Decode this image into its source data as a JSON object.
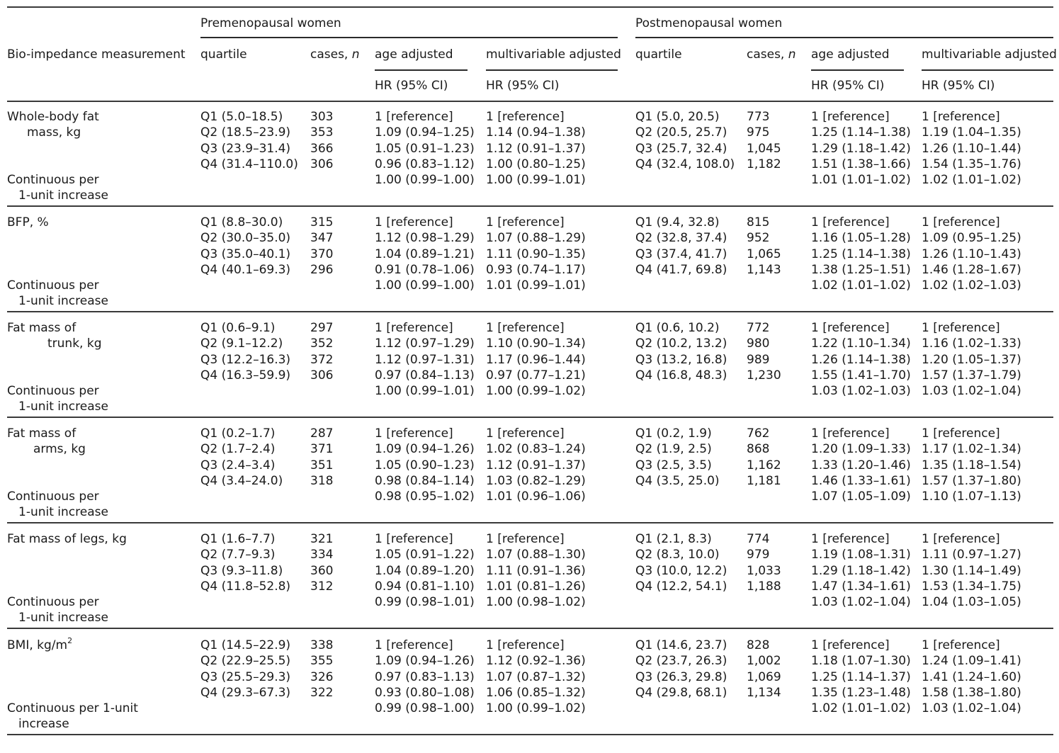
{
  "table": {
    "group_headers": {
      "pre": "Premenopausal women",
      "post": "Postmenopausal women"
    },
    "columns": {
      "measurement": "Bio-impedance measurement",
      "quartile": "quartile",
      "cases": "cases, ",
      "cases_n": "n",
      "age_adjusted": "age adjusted",
      "multivariable_adjusted": "multivariable adjusted",
      "hr_ci": "HR (95% CI)"
    },
    "sections": [
      {
        "label": [
          "Whole-body fat",
          "mass, kg"
        ],
        "continuous_label": [
          "Continuous per",
          "1-unit increase"
        ],
        "rows": [
          {
            "pre_q": "Q1 (5.0–18.5)",
            "pre_n": "303",
            "pre_age": "1 [reference]",
            "pre_mv": "1 [reference]",
            "post_q": "Q1 (5.0, 20.5)",
            "post_n": "773",
            "post_age": "1 [reference]",
            "post_mv": "1 [reference]"
          },
          {
            "pre_q": "Q2 (18.5–23.9)",
            "pre_n": "353",
            "pre_age": "1.09 (0.94–1.25)",
            "pre_mv": "1.14 (0.94–1.38)",
            "post_q": "Q2 (20.5, 25.7)",
            "post_n": "975",
            "post_age": "1.25 (1.14–1.38)",
            "post_mv": "1.19 (1.04–1.35)"
          },
          {
            "pre_q": "Q3 (23.9–31.4)",
            "pre_n": "366",
            "pre_age": "1.05 (0.91–1.23)",
            "pre_mv": "1.12 (0.91–1.37)",
            "post_q": "Q3 (25.7, 32.4)",
            "post_n": "1,045",
            "post_age": "1.29 (1.18–1.42)",
            "post_mv": "1.26 (1.10–1.44)"
          },
          {
            "pre_q": "Q4 (31.4–110.0)",
            "pre_n": "306",
            "pre_age": "0.96 (0.83–1.12)",
            "pre_mv": "1.00 (0.80–1.25)",
            "post_q": "Q4 (32.4, 108.0)",
            "post_n": "1,182",
            "post_age": "1.51 (1.38–1.66)",
            "post_mv": "1.54 (1.35–1.76)"
          }
        ],
        "continuous": {
          "pre_age": "1.00 (0.99–1.00)",
          "pre_mv": "1.00 (0.99–1.01)",
          "post_age": "1.01 (1.01–1.02)",
          "post_mv": "1.02 (1.01–1.02)"
        }
      },
      {
        "label": [
          "BFP, %"
        ],
        "continuous_label": [
          "Continuous per",
          "1-unit increase"
        ],
        "rows": [
          {
            "pre_q": "Q1 (8.8–30.0)",
            "pre_n": "315",
            "pre_age": "1 [reference]",
            "pre_mv": "1 [reference]",
            "post_q": "Q1 (9.4, 32.8)",
            "post_n": "815",
            "post_age": "1 [reference]",
            "post_mv": "1 [reference]"
          },
          {
            "pre_q": "Q2 (30.0–35.0)",
            "pre_n": "347",
            "pre_age": "1.12 (0.98–1.29)",
            "pre_mv": "1.07 (0.88–1.29)",
            "post_q": "Q2 (32.8, 37.4)",
            "post_n": "952",
            "post_age": "1.16 (1.05–1.28)",
            "post_mv": "1.09 (0.95–1.25)"
          },
          {
            "pre_q": "Q3 (35.0–40.1)",
            "pre_n": "370",
            "pre_age": "1.04 (0.89–1.21)",
            "pre_mv": "1.11 (0.90–1.35)",
            "post_q": "Q3 (37.4, 41.7)",
            "post_n": "1,065",
            "post_age": "1.25 (1.14–1.38)",
            "post_mv": "1.26 (1.10–1.43)"
          },
          {
            "pre_q": "Q4 (40.1–69.3)",
            "pre_n": "296",
            "pre_age": "0.91 (0.78–1.06)",
            "pre_mv": "0.93 (0.74–1.17)",
            "post_q": "Q4 (41.7, 69.8)",
            "post_n": "1,143",
            "post_age": "1.38 (1.25–1.51)",
            "post_mv": "1.46 (1.28–1.67)"
          }
        ],
        "continuous": {
          "pre_age": "1.00 (0.99–1.00)",
          "pre_mv": "1.01 (0.99–1.01)",
          "post_age": "1.02 (1.01–1.02)",
          "post_mv": "1.02 (1.02–1.03)"
        }
      },
      {
        "label": [
          "Fat mass of",
          "trunk, kg"
        ],
        "continuous_label": [
          "Continuous per",
          "1-unit increase"
        ],
        "rows": [
          {
            "pre_q": "Q1 (0.6–9.1)",
            "pre_n": "297",
            "pre_age": "1 [reference]",
            "pre_mv": "1 [reference]",
            "post_q": "Q1 (0.6, 10.2)",
            "post_n": "772",
            "post_age": "1 [reference]",
            "post_mv": "1 [reference]"
          },
          {
            "pre_q": "Q2 (9.1–12.2)",
            "pre_n": "352",
            "pre_age": "1.12 (0.97–1.29)",
            "pre_mv": "1.10 (0.90–1.34)",
            "post_q": "Q2 (10.2, 13.2)",
            "post_n": "980",
            "post_age": "1.22 (1.10–1.34)",
            "post_mv": "1.16 (1.02–1.33)"
          },
          {
            "pre_q": "Q3 (12.2–16.3)",
            "pre_n": "372",
            "pre_age": "1.12 (0.97–1.31)",
            "pre_mv": "1.17 (0.96–1.44)",
            "post_q": "Q3 (13.2, 16.8)",
            "post_n": "989",
            "post_age": "1.26 (1.14–1.38)",
            "post_mv": "1.20 (1.05–1.37)"
          },
          {
            "pre_q": "Q4 (16.3–59.9)",
            "pre_n": "306",
            "pre_age": "0.97 (0.84–1.13)",
            "pre_mv": "0.97 (0.77–1.21)",
            "post_q": "Q4 (16.8, 48.3)",
            "post_n": "1,230",
            "post_age": "1.55 (1.41–1.70)",
            "post_mv": "1.57 (1.37–1.79)"
          }
        ],
        "continuous": {
          "pre_age": "1.00 (0.99–1.01)",
          "pre_mv": "1.00 (0.99–1.02)",
          "post_age": "1.03 (1.02–1.03)",
          "post_mv": "1.03 (1.02–1.04)"
        }
      },
      {
        "label": [
          "Fat mass of",
          "arms, kg"
        ],
        "continuous_label": [
          "Continuous per",
          "1-unit increase"
        ],
        "rows": [
          {
            "pre_q": "Q1 (0.2–1.7)",
            "pre_n": "287",
            "pre_age": "1 [reference]",
            "pre_mv": "1 [reference]",
            "post_q": "Q1 (0.2, 1.9)",
            "post_n": "762",
            "post_age": "1 [reference]",
            "post_mv": "1 [reference]"
          },
          {
            "pre_q": "Q2 (1.7–2.4)",
            "pre_n": "371",
            "pre_age": "1.09 (0.94–1.26)",
            "pre_mv": "1.02 (0.83–1.24)",
            "post_q": "Q2 (1.9, 2.5)",
            "post_n": "868",
            "post_age": "1.20 (1.09–1.33)",
            "post_mv": "1.17 (1.02–1.34)"
          },
          {
            "pre_q": "Q3 (2.4–3.4)",
            "pre_n": "351",
            "pre_age": "1.05 (0.90–1.23)",
            "pre_mv": "1.12 (0.91–1.37)",
            "post_q": "Q3 (2.5, 3.5)",
            "post_n": "1,162",
            "post_age": "1.33 (1.20–1.46)",
            "post_mv": "1.35 (1.18–1.54)"
          },
          {
            "pre_q": "Q4 (3.4–24.0)",
            "pre_n": "318",
            "pre_age": "0.98 (0.84–1.14)",
            "pre_mv": "1.03 (0.82–1.29)",
            "post_q": "Q4 (3.5, 25.0)",
            "post_n": "1,181",
            "post_age": "1.46 (1.33–1.61)",
            "post_mv": "1.57 (1.37–1.80)"
          }
        ],
        "continuous": {
          "pre_age": "0.98 (0.95–1.02)",
          "pre_mv": "1.01 (0.96–1.06)",
          "post_age": "1.07 (1.05–1.09)",
          "post_mv": "1.10 (1.07–1.13)"
        }
      },
      {
        "label": [
          "Fat mass of legs, kg"
        ],
        "continuous_label": [
          "Continuous per",
          "1-unit increase"
        ],
        "rows": [
          {
            "pre_q": "Q1 (1.6–7.7)",
            "pre_n": "321",
            "pre_age": "1 [reference]",
            "pre_mv": "1 [reference]",
            "post_q": "Q1 (2.1, 8.3)",
            "post_n": "774",
            "post_age": "1 [reference]",
            "post_mv": "1 [reference]"
          },
          {
            "pre_q": "Q2 (7.7–9.3)",
            "pre_n": "334",
            "pre_age": "1.05 (0.91–1.22)",
            "pre_mv": "1.07 (0.88–1.30)",
            "post_q": "Q2 (8.3, 10.0)",
            "post_n": "979",
            "post_age": "1.19 (1.08–1.31)",
            "post_mv": "1.11 (0.97–1.27)"
          },
          {
            "pre_q": "Q3 (9.3–11.8)",
            "pre_n": "360",
            "pre_age": "1.04 (0.89–1.20)",
            "pre_mv": "1.11 (0.91–1.36)",
            "post_q": "Q3 (10.0, 12.2)",
            "post_n": "1,033",
            "post_age": "1.29 (1.18–1.42)",
            "post_mv": "1.30 (1.14–1.49)"
          },
          {
            "pre_q": "Q4 (11.8–52.8)",
            "pre_n": "312",
            "pre_age": "0.94 (0.81–1.10)",
            "pre_mv": "1.01 (0.81–1.26)",
            "post_q": "Q4 (12.2, 54.1)",
            "post_n": "1,188",
            "post_age": "1.47 (1.34–1.61)",
            "post_mv": "1.53 (1.34–1.75)"
          }
        ],
        "continuous": {
          "pre_age": "0.99 (0.98–1.01)",
          "pre_mv": "1.00 (0.98–1.02)",
          "post_age": "1.03 (1.02–1.04)",
          "post_mv": "1.04 (1.03–1.05)"
        }
      },
      {
        "label": [
          "BMI, kg/m"
        ],
        "label_sup": "2",
        "continuous_label": [
          "Continuous per 1-unit",
          "increase"
        ],
        "rows": [
          {
            "pre_q": "Q1 (14.5–22.9)",
            "pre_n": "338",
            "pre_age": "1 [reference]",
            "pre_mv": "1 [reference]",
            "post_q": "Q1 (14.6, 23.7)",
            "post_n": "828",
            "post_age": "1 [reference]",
            "post_mv": "1 [reference]"
          },
          {
            "pre_q": "Q2 (22.9–25.5)",
            "pre_n": "355",
            "pre_age": "1.09 (0.94–1.26)",
            "pre_mv": "1.12 (0.92–1.36)",
            "post_q": "Q2 (23.7, 26.3)",
            "post_n": "1,002",
            "post_age": "1.18 (1.07–1.30)",
            "post_mv": "1.24 (1.09–1.41)"
          },
          {
            "pre_q": "Q3 (25.5–29.3)",
            "pre_n": "326",
            "pre_age": "0.97 (0.83–1.13)",
            "pre_mv": "1.07 (0.87–1.32)",
            "post_q": "Q3 (26.3, 29.8)",
            "post_n": "1,069",
            "post_age": "1.25 (1.14–1.37)",
            "post_mv": "1.41 (1.24–1.60)"
          },
          {
            "pre_q": "Q4 (29.3–67.3)",
            "pre_n": "322",
            "pre_age": "0.93 (0.80–1.08)",
            "pre_mv": "1.06 (0.85–1.32)",
            "post_q": "Q4 (29.8, 68.1)",
            "post_n": "1,134",
            "post_age": "1.35 (1.23–1.48)",
            "post_mv": "1.58 (1.38–1.80)"
          }
        ],
        "continuous": {
          "pre_age": "0.99 (0.98–1.00)",
          "pre_mv": "1.00 (0.99–1.02)",
          "post_age": "1.02 (1.01–1.02)",
          "post_mv": "1.03 (1.02–1.04)"
        }
      }
    ]
  }
}
